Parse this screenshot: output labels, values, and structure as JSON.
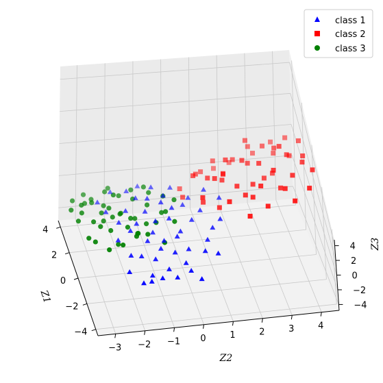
{
  "chart_data": {
    "type": "scatter",
    "projection": "3d",
    "xlabel": "Z1",
    "ylabel": "Z2",
    "zlabel": "Z3",
    "xlim": [
      -4.5,
      4.5
    ],
    "ylim": [
      -3.6,
      4.6
    ],
    "zlim": [
      -4.8,
      4.8
    ],
    "x_ticks": [
      "−4",
      "−2",
      "0",
      "2",
      "4"
    ],
    "y_ticks": [
      "−3",
      "−2",
      "−1",
      "0",
      "1",
      "2",
      "3",
      "4"
    ],
    "z_ticks": [
      "−4",
      "−2",
      "0",
      "2",
      "4"
    ],
    "grid": true,
    "legend": "top-right",
    "series": [
      {
        "name": "class 1",
        "color": "#0000ff",
        "marker": "triangle",
        "points": [
          [
            -3.9,
            -1.9,
            0.6
          ],
          [
            -3.7,
            -1.6,
            0.2
          ],
          [
            -3.5,
            -1.2,
            0.0
          ],
          [
            -3.6,
            -0.7,
            0.1
          ],
          [
            -3.4,
            -0.2,
            0.3
          ],
          [
            -3.8,
            0.1,
            0.0
          ],
          [
            -3.2,
            -1.5,
            -0.2
          ],
          [
            -3.0,
            -0.9,
            -0.1
          ],
          [
            -2.9,
            -0.3,
            0.2
          ],
          [
            -2.6,
            -1.3,
            0.4
          ],
          [
            -2.4,
            -0.6,
            0.5
          ],
          [
            -2.2,
            -0.1,
            0.3
          ],
          [
            -2.0,
            -1.7,
            -0.3
          ],
          [
            -1.8,
            -1.0,
            -0.1
          ],
          [
            -1.6,
            -0.4,
            0.6
          ],
          [
            -1.4,
            -1.4,
            0.1
          ],
          [
            -1.2,
            -0.8,
            -0.4
          ],
          [
            -1.0,
            -0.2,
            0.0
          ],
          [
            -0.8,
            -1.9,
            0.2
          ],
          [
            -0.6,
            -1.1,
            -0.5
          ],
          [
            -0.4,
            -0.5,
            0.3
          ],
          [
            -0.2,
            -1.6,
            -0.2
          ],
          [
            0.1,
            -0.9,
            -0.6
          ],
          [
            0.3,
            -0.3,
            0.1
          ],
          [
            0.5,
            -1.2,
            -0.3
          ],
          [
            0.8,
            -0.6,
            -0.1
          ],
          [
            1.0,
            -1.8,
            -0.8
          ],
          [
            1.3,
            -1.0,
            -0.4
          ],
          [
            1.6,
            -0.4,
            -0.7
          ],
          [
            2.0,
            -1.3,
            -1.2
          ],
          [
            2.4,
            -0.7,
            -1.0
          ],
          [
            2.8,
            -1.5,
            -1.6
          ],
          [
            3.2,
            -2.0,
            -2.0
          ],
          [
            -2.7,
            0.4,
            0.9
          ],
          [
            -1.9,
            0.6,
            0.5
          ],
          [
            -1.1,
            0.9,
            0.2
          ],
          [
            -0.3,
            0.3,
            -0.2
          ],
          [
            0.4,
            0.7,
            -0.5
          ],
          [
            1.1,
            0.2,
            -0.9
          ],
          [
            1.8,
            0.5,
            -1.3
          ],
          [
            -3.3,
            -2.3,
            0.8
          ],
          [
            -2.3,
            -2.1,
            0.5
          ],
          [
            -1.3,
            -2.4,
            0.3
          ],
          [
            -0.1,
            -2.2,
            -0.1
          ],
          [
            0.9,
            -2.5,
            -0.6
          ],
          [
            2.2,
            -2.6,
            -1.5
          ],
          [
            -3.0,
            0.8,
            1.1
          ],
          [
            -0.9,
            1.2,
            0.6
          ],
          [
            0.6,
            1.4,
            0.1
          ],
          [
            1.5,
            1.0,
            -0.4
          ],
          [
            2.6,
            0.0,
            -1.4
          ],
          [
            3.5,
            -1.0,
            -2.1
          ]
        ]
      },
      {
        "name": "class 2",
        "color": "#ff0000",
        "marker": "square",
        "points": [
          [
            1.6,
            1.8,
            1.6
          ],
          [
            1.1,
            2.3,
            2.2
          ],
          [
            0.5,
            2.8,
            2.8
          ],
          [
            -0.2,
            3.2,
            3.3
          ],
          [
            -1.2,
            2.6,
            3.9
          ],
          [
            -1.9,
            1.4,
            4.2
          ],
          [
            -1.0,
            0.6,
            3.0
          ],
          [
            0.2,
            1.2,
            2.4
          ],
          [
            0.9,
            1.6,
            1.6
          ],
          [
            1.8,
            2.6,
            0.9
          ],
          [
            2.6,
            2.2,
            0.2
          ],
          [
            3.2,
            1.6,
            -0.5
          ],
          [
            3.6,
            2.9,
            -0.2
          ],
          [
            2.9,
            3.3,
            0.6
          ],
          [
            2.2,
            3.6,
            1.3
          ],
          [
            1.3,
            3.9,
            2.0
          ],
          [
            0.4,
            4.3,
            2.7
          ],
          [
            -0.6,
            3.8,
            3.4
          ],
          [
            -1.5,
            3.4,
            4.0
          ],
          [
            -0.9,
            2.1,
            2.6
          ],
          [
            0.0,
            2.5,
            1.9
          ],
          [
            0.7,
            3.0,
            1.2
          ],
          [
            1.4,
            3.4,
            0.5
          ],
          [
            2.0,
            4.1,
            0.9
          ],
          [
            3.0,
            3.7,
            -0.1
          ],
          [
            3.8,
            3.1,
            -0.9
          ],
          [
            4.0,
            2.3,
            -1.6
          ],
          [
            3.4,
            1.2,
            -1.4
          ],
          [
            2.6,
            0.9,
            -0.6
          ],
          [
            1.9,
            0.7,
            0.2
          ],
          [
            1.2,
            1.1,
            0.9
          ],
          [
            0.5,
            1.5,
            1.7
          ],
          [
            -0.3,
            1.9,
            2.4
          ],
          [
            -1.3,
            2.3,
            3.1
          ],
          [
            -2.1,
            2.7,
            3.7
          ],
          [
            -2.6,
            2.0,
            4.0
          ],
          [
            -2.4,
            3.6,
            4.6
          ],
          [
            -1.8,
            4.2,
            4.4
          ],
          [
            -0.6,
            4.5,
            3.7
          ],
          [
            0.9,
            4.4,
            2.4
          ],
          [
            2.4,
            4.5,
            1.4
          ],
          [
            3.5,
            4.2,
            0.3
          ],
          [
            4.2,
            3.8,
            -0.7
          ],
          [
            4.3,
            1.8,
            -2.2
          ],
          [
            3.0,
            0.4,
            -2.0
          ],
          [
            1.7,
            0.3,
            -1.1
          ],
          [
            0.3,
            0.8,
            0.3
          ],
          [
            -0.8,
            1.2,
            1.5
          ],
          [
            2.9,
            2.7,
            1.1
          ],
          [
            1.0,
            3.6,
            3.2
          ],
          [
            -0.4,
            3.4,
            2.0
          ],
          [
            2.2,
            1.8,
            -0.3
          ]
        ]
      },
      {
        "name": "class 3",
        "color": "#008000",
        "marker": "circle",
        "points": [
          [
            -0.8,
            -2.9,
            2.2
          ],
          [
            -1.4,
            -2.6,
            2.9
          ],
          [
            -2.0,
            -3.1,
            3.4
          ],
          [
            -2.9,
            -3.4,
            4.0
          ],
          [
            -3.3,
            -2.5,
            4.3
          ],
          [
            -2.6,
            -1.9,
            3.6
          ],
          [
            -1.9,
            -1.5,
            2.9
          ],
          [
            -1.2,
            -1.8,
            2.1
          ],
          [
            -0.6,
            -2.2,
            1.6
          ],
          [
            0.1,
            -2.7,
            1.2
          ],
          [
            0.5,
            -3.3,
            0.9
          ],
          [
            -0.1,
            -3.5,
            1.8
          ],
          [
            -0.9,
            -3.6,
            2.6
          ],
          [
            -1.7,
            -3.3,
            3.3
          ],
          [
            -2.4,
            -2.8,
            3.8
          ],
          [
            -3.0,
            -1.6,
            4.4
          ],
          [
            -2.2,
            -1.2,
            3.6
          ],
          [
            -1.4,
            -0.9,
            2.8
          ],
          [
            -0.7,
            -1.3,
            2.3
          ],
          [
            0.0,
            -1.7,
            1.7
          ],
          [
            0.6,
            -2.1,
            1.1
          ],
          [
            1.2,
            -2.5,
            0.6
          ],
          [
            1.0,
            -3.0,
            0.4
          ],
          [
            0.2,
            -3.1,
            1.4
          ],
          [
            -0.5,
            -2.6,
            2.0
          ],
          [
            -1.1,
            -2.3,
            2.5
          ],
          [
            -1.6,
            -2.0,
            3.0
          ],
          [
            -2.3,
            -2.2,
            3.7
          ],
          [
            -3.1,
            -2.0,
            4.6
          ],
          [
            -3.5,
            -3.0,
            4.5
          ],
          [
            -2.7,
            -3.6,
            4.0
          ],
          [
            -1.5,
            -3.8,
            3.1
          ],
          [
            -0.4,
            -3.9,
            2.0
          ],
          [
            0.7,
            -3.7,
            0.9
          ],
          [
            1.5,
            -3.2,
            0.1
          ],
          [
            1.8,
            -2.3,
            0.0
          ],
          [
            1.1,
            -1.6,
            0.7
          ],
          [
            0.3,
            -1.1,
            1.6
          ],
          [
            -0.4,
            -0.7,
            2.4
          ],
          [
            -1.0,
            -0.4,
            3.1
          ],
          [
            -1.7,
            -0.8,
            3.5
          ],
          [
            -2.5,
            -0.6,
            4.2
          ],
          [
            -3.6,
            -1.1,
            4.8
          ],
          [
            -2.0,
            -1.8,
            2.2
          ],
          [
            -0.2,
            -2.4,
            2.6
          ],
          [
            0.8,
            -1.2,
            1.3
          ],
          [
            -1.3,
            -2.9,
            2.4
          ],
          [
            -2.8,
            -2.6,
            3.1
          ]
        ]
      }
    ]
  }
}
